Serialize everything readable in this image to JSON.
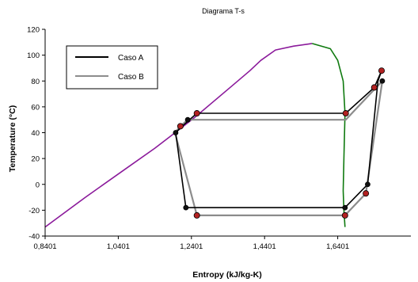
{
  "chart_data": {
    "type": "line",
    "title": "Diagrama T-s",
    "xlabel": "Entropy (kJ/kg-K)",
    "ylabel": "Temperature (°C)",
    "xlim": [
      0.8401,
      1.8401
    ],
    "ylim": [
      -40,
      120
    ],
    "xticks": [
      0.8401,
      1.0401,
      1.2401,
      1.4401,
      1.6401
    ],
    "xtick_labels": [
      "0,8401",
      "1,0401",
      "1,2401",
      "1,4401",
      "1,6401"
    ],
    "yticks": [
      -40,
      -20,
      0,
      20,
      40,
      60,
      80,
      100,
      120
    ],
    "ytick_labels": [
      "-40",
      "-20",
      "0",
      "20",
      "40",
      "60",
      "80",
      "100",
      "120"
    ],
    "grid": false,
    "legend": {
      "position": "top-left",
      "entries": [
        "Caso A",
        "Caso B"
      ]
    },
    "colors": {
      "saturated_liquid": "#8B1A9B",
      "saturated_vapor": "#0F7A0F",
      "caso_a": "#000000",
      "caso_b": "#8C8C8C",
      "marker_red": "#B22222",
      "marker_dark": "#111111"
    },
    "series": [
      {
        "key": "saturated_liquid",
        "x": [
          0.8401,
          0.95,
          1.06,
          1.14,
          1.2,
          1.25,
          1.3,
          1.35,
          1.4,
          1.43,
          1.47,
          1.52,
          1.57
        ],
        "y": [
          -33,
          -10,
          12,
          28,
          41,
          52,
          64,
          76,
          88,
          96,
          104,
          107,
          109
        ]
      },
      {
        "key": "saturated_vapor",
        "x": [
          1.57,
          1.62,
          1.64,
          1.655,
          1.66,
          1.657,
          1.655,
          1.657,
          1.66
        ],
        "y": [
          109,
          105,
          96,
          80,
          55,
          20,
          -5,
          -20,
          -33
        ]
      },
      {
        "name": "Caso A",
        "key": "caso_a",
        "x": [
          1.255,
          1.662,
          1.74,
          1.76,
          1.75,
          1.722,
          1.66,
          1.225,
          1.197,
          1.215,
          1.255
        ],
        "y": [
          55,
          55,
          75,
          88,
          80,
          0,
          -18,
          -18,
          40,
          45,
          55
        ]
      },
      {
        "name": "Caso B",
        "key": "caso_b",
        "x": [
          1.23,
          1.662,
          1.762,
          1.717,
          1.66,
          1.255,
          1.195,
          1.21,
          1.23
        ],
        "y": [
          50,
          50,
          80,
          -7,
          -24,
          -24,
          40,
          45,
          50
        ]
      }
    ],
    "markers": [
      {
        "x": 1.255,
        "y": 55,
        "color": "red"
      },
      {
        "x": 1.662,
        "y": 55,
        "color": "red"
      },
      {
        "x": 1.74,
        "y": 75,
        "color": "red"
      },
      {
        "x": 1.76,
        "y": 88,
        "color": "red"
      },
      {
        "x": 1.717,
        "y": -7,
        "color": "red"
      },
      {
        "x": 1.66,
        "y": -24,
        "color": "red"
      },
      {
        "x": 1.255,
        "y": -24,
        "color": "red"
      },
      {
        "x": 1.21,
        "y": 45,
        "color": "red"
      },
      {
        "x": 1.23,
        "y": 50,
        "color": "dark"
      },
      {
        "x": 1.762,
        "y": 80,
        "color": "dark"
      },
      {
        "x": 1.722,
        "y": 0,
        "color": "dark"
      },
      {
        "x": 1.66,
        "y": -18,
        "color": "dark"
      },
      {
        "x": 1.225,
        "y": -18,
        "color": "dark"
      },
      {
        "x": 1.197,
        "y": 40,
        "color": "dark"
      }
    ]
  }
}
